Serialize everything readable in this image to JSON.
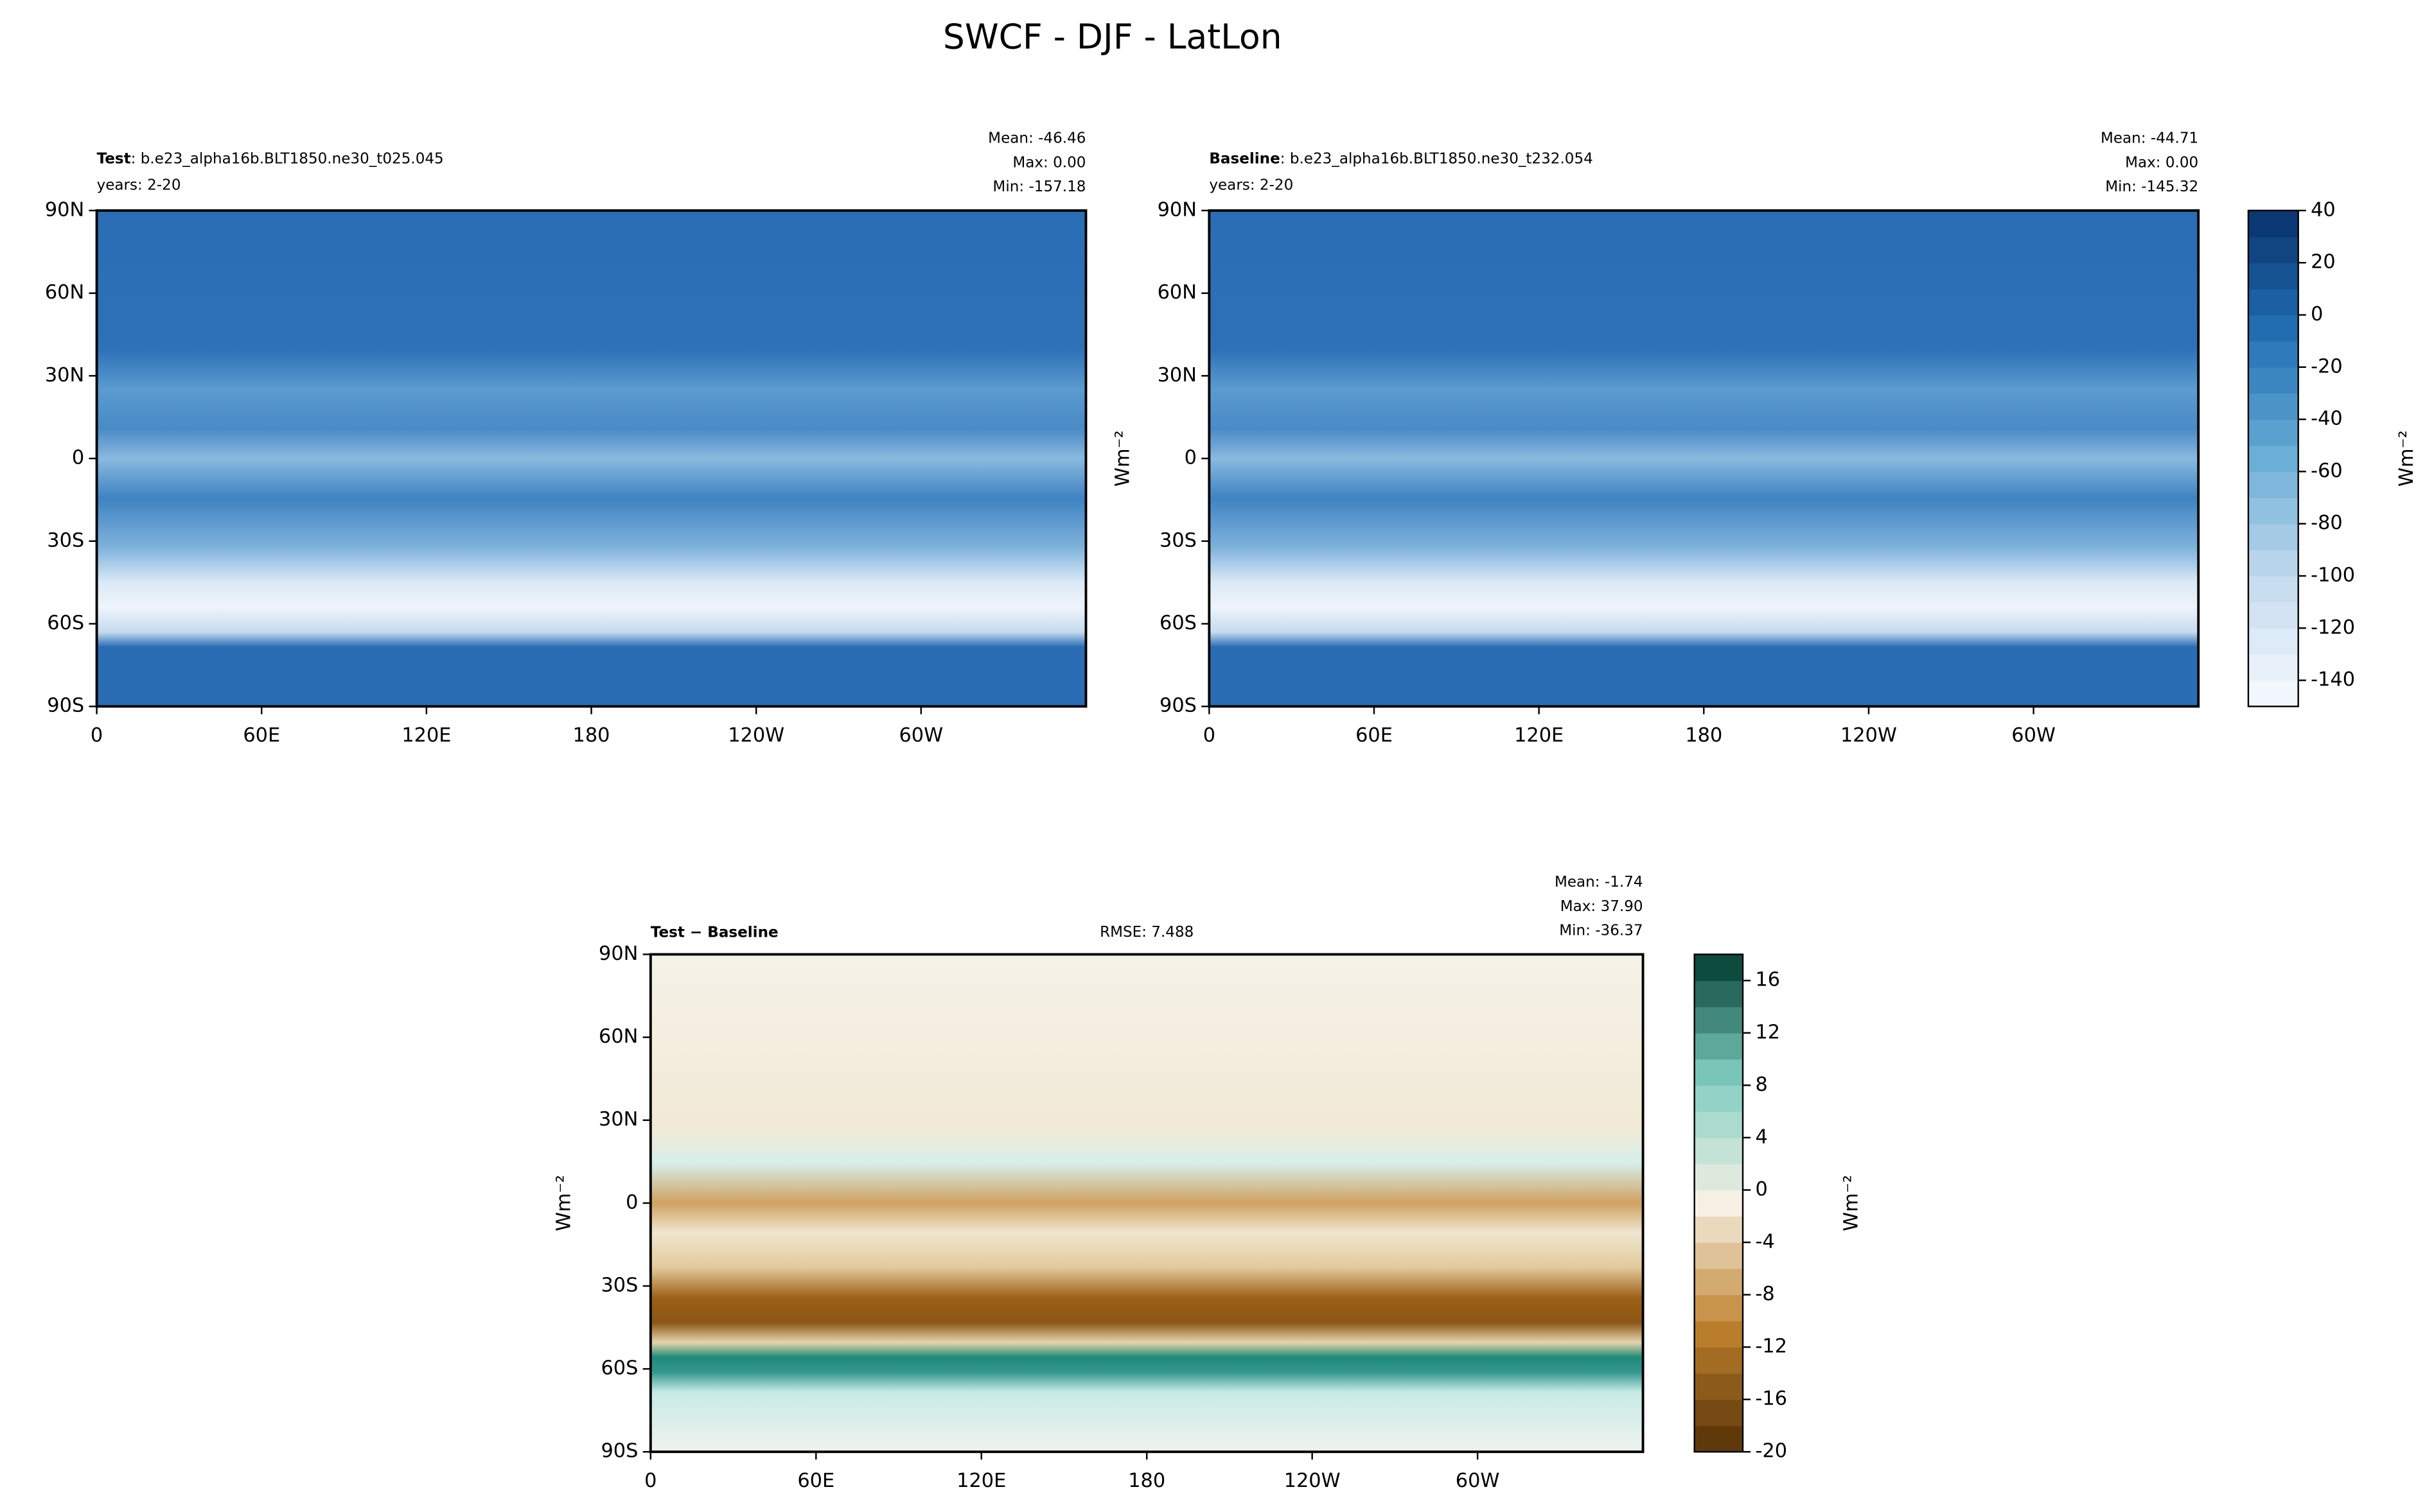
{
  "title": "SWCF - DJF - LatLon",
  "chart_data": [
    {
      "type": "contour",
      "label": "Test",
      "case": ": b.e23_alpha16b.BLT1850.ne30_t025.045",
      "years": "years: 2-20",
      "stats": [
        "Mean: -46.46",
        "Max:  0.00",
        "Min: -157.18"
      ],
      "xlim": [
        0,
        360
      ],
      "ylim": [
        -90,
        90
      ],
      "xticks": [
        0,
        {
          "value": 60,
          "label": "60E"
        },
        {
          "value": 120,
          "label": "120E"
        },
        180,
        {
          "value": 240,
          "label": "120W"
        },
        {
          "value": 300,
          "label": "60W"
        }
      ],
      "yticks": [
        {
          "value": 90,
          "label": "90N"
        },
        {
          "value": 60,
          "label": "60N"
        },
        {
          "value": 30,
          "label": "30N"
        },
        0,
        {
          "value": -30,
          "label": "30S"
        },
        {
          "value": -60,
          "label": "60S"
        },
        {
          "value": -90,
          "label": "90S"
        }
      ]
    },
    {
      "type": "contour",
      "label": "Baseline",
      "case": ": b.e23_alpha16b.BLT1850.ne30_t232.054",
      "years": "years: 2-20",
      "stats": [
        "Mean: -44.71",
        "Max:  0.00",
        "Min: -145.32"
      ],
      "ylabel": "Wm⁻²",
      "xlim": [
        0,
        360
      ],
      "ylim": [
        -90,
        90
      ],
      "xticks": [
        0,
        {
          "value": 60,
          "label": "60E"
        },
        {
          "value": 120,
          "label": "120E"
        },
        180,
        {
          "value": 240,
          "label": "120W"
        },
        {
          "value": 300,
          "label": "60W"
        }
      ],
      "yticks": [
        {
          "value": 90,
          "label": "90N"
        },
        {
          "value": 60,
          "label": "60N"
        },
        {
          "value": 30,
          "label": "30N"
        },
        0,
        {
          "value": -30,
          "label": "30S"
        },
        {
          "value": -60,
          "label": "60S"
        },
        {
          "value": -90,
          "label": "90S"
        }
      ],
      "colorbar": {
        "lim": [
          -150,
          40
        ],
        "step": 10,
        "ticks": [
          40,
          20,
          0,
          -20,
          -40,
          -60,
          -80,
          -100,
          -120,
          -140
        ],
        "label": "Wm⁻²",
        "cmap": [
          "#f7fbff",
          "#c6dbef",
          "#6baed6",
          "#2171b5",
          "#08306b"
        ]
      }
    },
    {
      "type": "contour",
      "label": "Test − Baseline",
      "rmse": "RMSE: 7.488",
      "stats": [
        "Mean: -1.74",
        "Max: 37.90",
        "Min: -36.37"
      ],
      "ylabel": "Wm⁻²",
      "xlim": [
        0,
        360
      ],
      "ylim": [
        -90,
        90
      ],
      "xticks": [
        0,
        {
          "value": 60,
          "label": "60E"
        },
        {
          "value": 120,
          "label": "120E"
        },
        180,
        {
          "value": 240,
          "label": "120W"
        },
        {
          "value": 300,
          "label": "60W"
        }
      ],
      "yticks": [
        {
          "value": 90,
          "label": "90N"
        },
        {
          "value": 60,
          "label": "60N"
        },
        {
          "value": 30,
          "label": "30N"
        },
        0,
        {
          "value": -30,
          "label": "30S"
        },
        {
          "value": -60,
          "label": "60S"
        },
        {
          "value": -90,
          "label": "90S"
        }
      ],
      "colorbar": {
        "lim": [
          -20,
          18
        ],
        "step": 2,
        "ticks": [
          16,
          12,
          8,
          4,
          0,
          -4,
          -8,
          -12,
          -16,
          -20
        ],
        "label": "Wm⁻²",
        "cmap": [
          "#543005",
          "#bf812d",
          "#f6f1e4",
          "#80cdc1",
          "#003c30"
        ]
      }
    }
  ]
}
